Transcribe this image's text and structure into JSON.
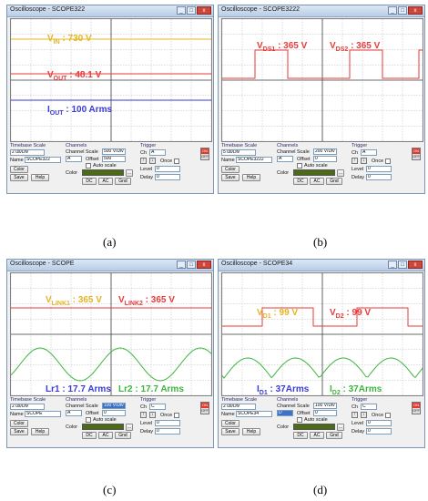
{
  "common": {
    "timebase_scale_title": "Timebase Scale",
    "name_label": "Name",
    "color_label": "Color",
    "save_label": "Save",
    "help_label": "Help",
    "channels_title": "Channels",
    "channel_label": "Channel",
    "scale_label": "Scale",
    "offset_label": "Offset",
    "autoscale_label": "Auto scale",
    "dc_label": "DC",
    "ac_label": "AC",
    "gnd_label": "Gnd",
    "trigger_title": "Trigger",
    "ch_label": "Ch",
    "level_label": "Level",
    "delay_label": "Delay",
    "once_label": "Once",
    "on_label": "ON",
    "off_label": "OFF",
    "color_dots": "...",
    "close_glyph": "x",
    "min_glyph": "_",
    "max_glyph": "□",
    "rise_glyph": "↑",
    "fall_glyph": "↓",
    "colors": {
      "yellow_trace": "#e6b422",
      "red_trace": "#e83a3a",
      "blue_trace": "#3a3ad8",
      "green_trace": "#3cb43c",
      "grid": "#b8b8b8"
    }
  },
  "panels": [
    {
      "title": "Oscilloscope - SCOPE322",
      "caption": "(a)",
      "labels": [
        {
          "text": "V",
          "sub": "IN",
          "value": " : 730 V",
          "color": "#e6b422"
        },
        {
          "text": "V",
          "sub": "OUT",
          "value": " : 48.1 V",
          "color": "#e83a3a"
        },
        {
          "text": "I",
          "sub": "OUT",
          "value": " : 100 Arms",
          "color": "#3a3ad8"
        }
      ],
      "timebase": "2 us/Div",
      "name_value": "SCOPE322",
      "channel_value": "A",
      "scale_value": "500 V/Div",
      "offset_value": "500",
      "trigger_ch": "A",
      "level_value": "0",
      "delay_value": "0"
    },
    {
      "title": "Oscilloscope - SCOPE3222",
      "caption": "(b)",
      "labels": [
        {
          "text": "V",
          "sub": "DS1",
          "value": " : 365 V",
          "color": "#e83a3a"
        },
        {
          "text": "V",
          "sub": "DS2",
          "value": " : 365 V",
          "color": "#e83a3a"
        }
      ],
      "timebase": "5 us/Div",
      "name_value": "SCOPE3222",
      "channel_value": "A",
      "scale_value": "200 V/Div",
      "offset_value": "0",
      "trigger_ch": "A",
      "level_value": "0",
      "delay_value": "0"
    },
    {
      "title": "Oscilloscope - SCOPE",
      "caption": "(c)",
      "labels": [
        {
          "text": "V",
          "sub": "LINK1",
          "value": " : 365 V",
          "color": "#e6b422"
        },
        {
          "text": "V",
          "sub": "LINK2",
          "value": " : 365 V",
          "color": "#e83a3a"
        },
        {
          "text": "Lr1",
          "sub": "",
          "value": " : 17.7 Arms",
          "color": "#3a3ad8"
        },
        {
          "text": "Lr2",
          "sub": "",
          "value": " : 17.7 Arms",
          "color": "#3cb43c"
        }
      ],
      "timebase": "2 us/Div",
      "name_value": "SCOPE",
      "channel_value": "A",
      "scale_value": "100 V/Div",
      "offset_value": "0",
      "trigger_ch": "C",
      "level_value": "0",
      "delay_value": "0"
    },
    {
      "title": "Oscilloscope - SCOPE34",
      "caption": "(d)",
      "labels": [
        {
          "text": "V",
          "sub": "D1",
          "value": " : 99 V",
          "color": "#e6b422"
        },
        {
          "text": "V",
          "sub": "D2",
          "value": " : 99 V",
          "color": "#e83a3a"
        },
        {
          "text": "I",
          "sub": "D1",
          "value": " : 37Arms",
          "color": "#3a3ad8"
        },
        {
          "text": "I",
          "sub": "D2",
          "value": " : 37Arms",
          "color": "#3cb43c"
        }
      ],
      "timebase": "2 us/Div",
      "name_value": "SCOPE34",
      "channel_value": "D",
      "scale_value": "100 V/Div",
      "offset_value": "0",
      "trigger_ch": "C",
      "level_value": "0",
      "delay_value": "0"
    }
  ]
}
